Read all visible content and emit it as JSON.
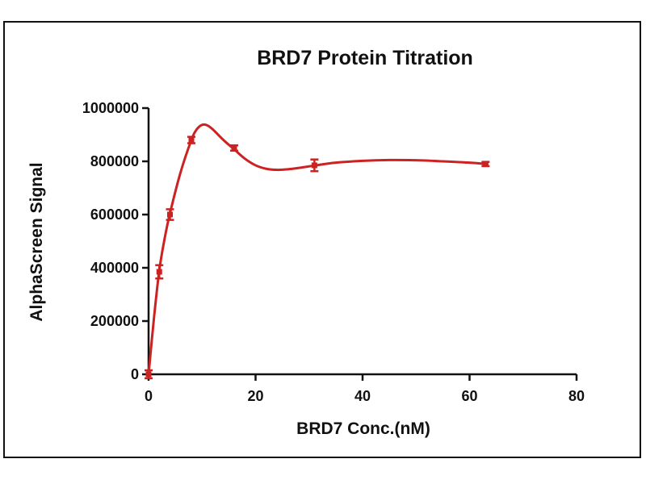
{
  "chart_data": {
    "type": "line",
    "title": "BRD7 Protein Titration",
    "xlabel": "BRD7 Conc.(nM)",
    "ylabel": "AlphaScreen Signal",
    "xlim": [
      0,
      80
    ],
    "ylim": [
      0,
      1000000
    ],
    "xticks": [
      0,
      20,
      40,
      60,
      80
    ],
    "yticks": [
      0,
      200000,
      400000,
      600000,
      800000,
      1000000
    ],
    "grid": false,
    "series_color": "#cc2222",
    "points": [
      {
        "x": 0,
        "y": 0,
        "err": 15000
      },
      {
        "x": 2,
        "y": 385000,
        "err": 25000
      },
      {
        "x": 4,
        "y": 600000,
        "err": 20000
      },
      {
        "x": 8,
        "y": 880000,
        "err": 12000
      },
      {
        "x": 16,
        "y": 850000,
        "err": 10000
      },
      {
        "x": 31,
        "y": 785000,
        "err": 22000
      },
      {
        "x": 63,
        "y": 790000,
        "err": 8000
      }
    ],
    "curve": [
      [
        0,
        0
      ],
      [
        1,
        210000
      ],
      [
        2,
        390000
      ],
      [
        3,
        510000
      ],
      [
        4,
        605000
      ],
      [
        6,
        760000
      ],
      [
        8,
        880000
      ],
      [
        9,
        920000
      ],
      [
        10,
        937000
      ],
      [
        11,
        935000
      ],
      [
        12,
        920000
      ],
      [
        14,
        880000
      ],
      [
        16,
        845000
      ],
      [
        18,
        810000
      ],
      [
        20,
        785000
      ],
      [
        22,
        772000
      ],
      [
        24,
        768000
      ],
      [
        26,
        770000
      ],
      [
        28,
        775000
      ],
      [
        31,
        784000
      ],
      [
        35,
        795000
      ],
      [
        40,
        802000
      ],
      [
        45,
        805000
      ],
      [
        50,
        804000
      ],
      [
        55,
        800000
      ],
      [
        60,
        795000
      ],
      [
        63,
        790000
      ]
    ]
  }
}
